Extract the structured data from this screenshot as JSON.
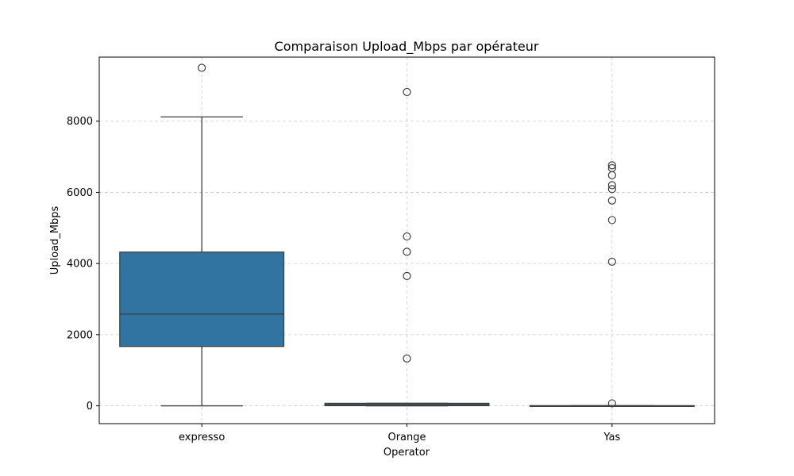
{
  "chart_data": {
    "type": "boxplot",
    "title": "Comparaison Upload_Mbps par opérateur",
    "xlabel": "Operator",
    "ylabel": "Upload_Mbps",
    "ylim": [
      -500,
      9800
    ],
    "yticks": [
      0,
      2000,
      4000,
      6000,
      8000
    ],
    "ytick_labels": [
      "0",
      "2000",
      "4000",
      "6000",
      "8000"
    ],
    "grid": true,
    "box_color": "#3274a1",
    "line_color": "#3d3d3d",
    "categories": [
      "expresso",
      "Orange",
      "Yas"
    ],
    "boxes": [
      {
        "category": "expresso",
        "whisker_low": 0,
        "q1": 1670,
        "median": 2580,
        "q3": 4320,
        "whisker_high": 8120,
        "outliers": [
          9500
        ]
      },
      {
        "category": "Orange",
        "whisker_low": 0,
        "q1": 5,
        "median": 30,
        "q3": 70,
        "whisker_high": 70,
        "outliers": [
          1330,
          3650,
          4330,
          4760,
          8820
        ]
      },
      {
        "category": "Yas",
        "whisker_low": 0,
        "q1": 0,
        "median": 0,
        "q3": 5,
        "whisker_high": 5,
        "outliers": [
          70,
          4050,
          5220,
          5770,
          6090,
          6200,
          6480,
          6680,
          6760
        ]
      }
    ]
  }
}
